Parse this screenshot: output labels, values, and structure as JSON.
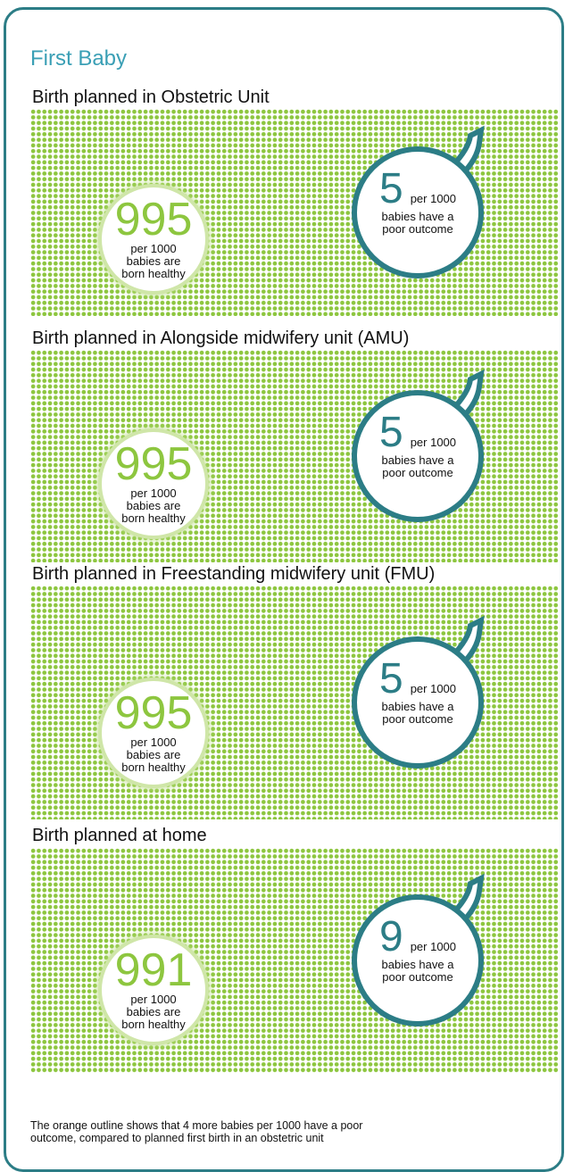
{
  "title": "First Baby",
  "sections": [
    {
      "heading": "Birth planned in Obstetric Unit",
      "healthy": {
        "number": 995,
        "lines": [
          "per 1000",
          "babies are",
          "born healthy"
        ]
      },
      "poor": {
        "number": 5,
        "per": "per 1000",
        "lines": [
          "babies have a",
          "poor outcome"
        ]
      }
    },
    {
      "heading": "Birth planned in Alongside midwifery unit (AMU)",
      "healthy": {
        "number": 995,
        "lines": [
          "per 1000",
          "babies are",
          "born healthy"
        ]
      },
      "poor": {
        "number": 5,
        "per": "per 1000",
        "lines": [
          "babies have a",
          "poor outcome"
        ]
      }
    },
    {
      "heading": "Birth planned in Freestanding midwifery unit (FMU)",
      "healthy": {
        "number": 995,
        "lines": [
          "per 1000",
          "babies are",
          "born healthy"
        ]
      },
      "poor": {
        "number": 5,
        "per": "per 1000",
        "lines": [
          "babies have a",
          "poor outcome"
        ]
      }
    },
    {
      "heading": "Birth planned at home",
      "healthy": {
        "number": 991,
        "lines": [
          "per 1000",
          "babies are",
          "born healthy"
        ]
      },
      "poor": {
        "number": 9,
        "per": "per 1000",
        "lines": [
          "babies have a",
          "poor outcome"
        ]
      }
    }
  ],
  "footnote": [
    "The orange outline shows that 4 more babies per 1000 have a poor",
    "outcome, compared to planned first birth in an obstetric unit"
  ]
}
